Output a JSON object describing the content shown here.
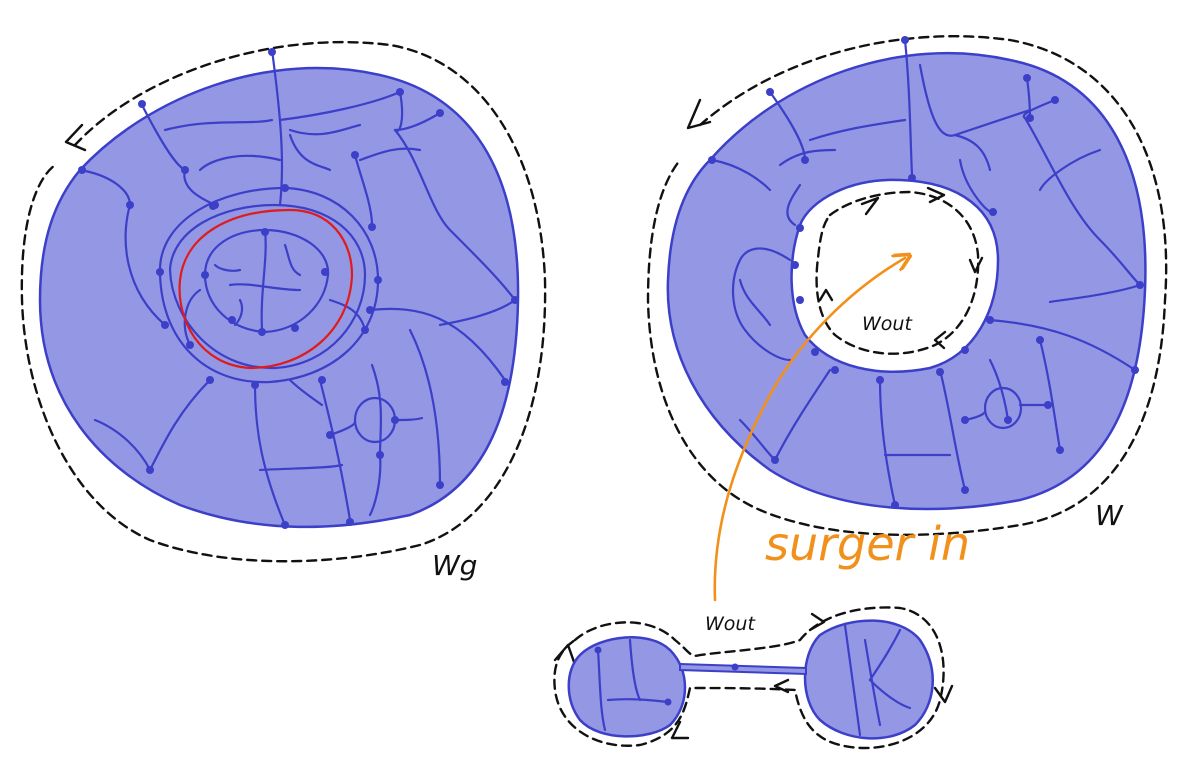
{
  "labels": {
    "wg": "Wg",
    "w": "W",
    "wout_center": "Wout",
    "wout_bottom": "Wout",
    "surger_in": "surger in"
  },
  "colors": {
    "region_fill": "#9497e3",
    "region_stroke": "#3c3fc8",
    "red_curve": "#e01b1b",
    "orange": "#f2901c",
    "dashed": "#111111",
    "background": "#ffffff"
  }
}
